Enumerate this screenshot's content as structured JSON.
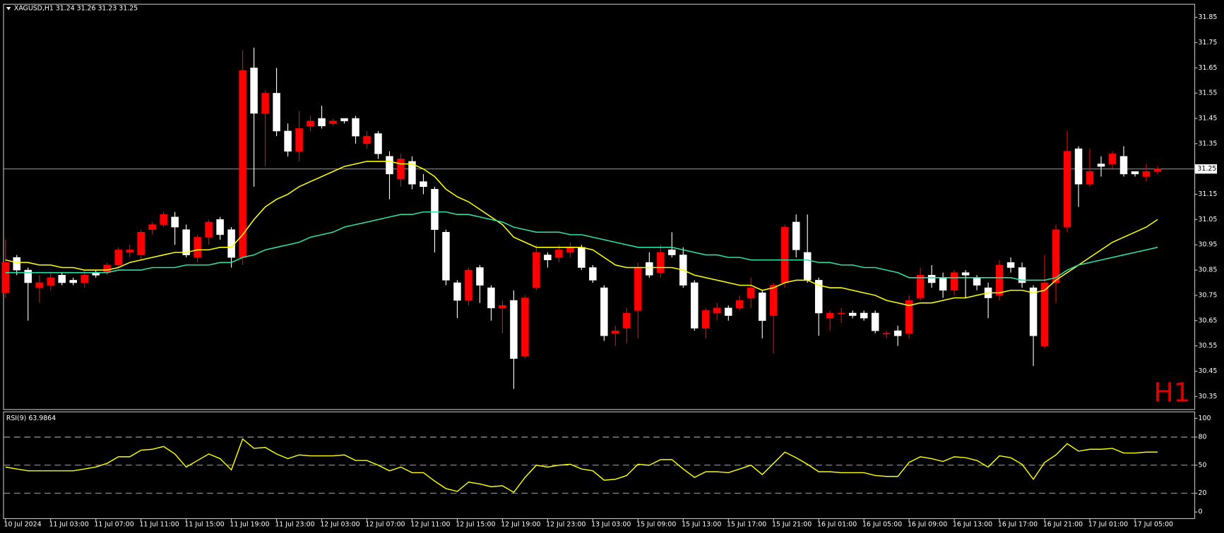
{
  "chart_data": [
    {
      "type": "candlestick",
      "title": "XAGUSD,H1  31.24 31.26 31.23 31.25",
      "watermark": "H1",
      "watermark_color": "#e00000",
      "up_color": "#ff0000",
      "down_color": "#ffffff",
      "last_price": 31.25,
      "categories": [
        "10 Jul 2024",
        null,
        null,
        null,
        "11 Jul 03:00",
        null,
        null,
        null,
        "11 Jul 07:00",
        null,
        null,
        null,
        "11 Jul 11:00",
        null,
        null,
        null,
        "11 Jul 15:00",
        null,
        null,
        null,
        "11 Jul 19:00",
        null,
        null,
        null,
        "11 Jul 23:00",
        null,
        null,
        null,
        "12 Jul 03:00",
        null,
        null,
        null,
        "12 Jul 07:00",
        null,
        null,
        null,
        "12 Jul 11:00",
        null,
        null,
        null,
        "12 Jul 15:00",
        null,
        null,
        null,
        "12 Jul 19:00",
        null,
        null,
        null,
        "12 Jul 23:00",
        null,
        null,
        null,
        "13 Jul 03:00",
        null,
        null,
        null,
        "15 Jul 09:00",
        null,
        null,
        null,
        "15 Jul 13:00",
        null,
        null,
        null,
        "15 Jul 17:00",
        null,
        null,
        null,
        "15 Jul 21:00",
        null,
        null,
        null,
        "16 Jul 01:00",
        null,
        null,
        null,
        "16 Jul 05:00",
        null,
        null,
        null,
        "16 Jul 09:00",
        null,
        null,
        null,
        "16 Jul 13:00",
        null,
        null,
        null,
        "16 Jul 17:00",
        null,
        null,
        null,
        "16 Jul 21:00",
        null,
        null,
        null,
        "17 Jul 01:00",
        null,
        null,
        null,
        "17 Jul 05:00",
        null,
        null
      ],
      "open": [
        30.76,
        30.9,
        30.85,
        30.78,
        30.79,
        30.83,
        30.81,
        30.8,
        30.84,
        30.84,
        30.87,
        30.92,
        30.91,
        31.01,
        31.03,
        31.06,
        31.01,
        30.9,
        30.98,
        31.05,
        31.01,
        30.9,
        31.65,
        31.47,
        31.55,
        31.4,
        31.32,
        31.42,
        31.45,
        31.43,
        31.45,
        31.45,
        31.35,
        31.39,
        31.3,
        31.21,
        31.28,
        31.2,
        31.17,
        31.0,
        30.8,
        30.73,
        30.86,
        30.78,
        30.7,
        30.73,
        30.51,
        30.78,
        30.91,
        30.9,
        30.92,
        30.94,
        30.86,
        30.78,
        30.6,
        30.62,
        30.69,
        30.88,
        30.84,
        30.93,
        30.91,
        30.8,
        30.62,
        30.68,
        30.7,
        30.7,
        30.74,
        30.76,
        30.67,
        30.8,
        31.04,
        30.92,
        30.81,
        30.66,
        30.68,
        30.68,
        30.68,
        30.68,
        30.6,
        30.61,
        30.6,
        30.74,
        30.83,
        30.82,
        30.77,
        30.84,
        30.82,
        30.78,
        30.75,
        30.88,
        30.86,
        30.78,
        30.55,
        30.8,
        31.02,
        31.33,
        31.19,
        31.27,
        31.27,
        31.3,
        31.24,
        31.22,
        31.24
      ],
      "high": [
        30.97,
        30.91,
        30.86,
        30.83,
        30.84,
        30.84,
        30.82,
        30.85,
        30.85,
        30.88,
        30.94,
        30.95,
        31.01,
        31.04,
        31.08,
        31.08,
        31.03,
        30.99,
        31.05,
        31.06,
        31.02,
        31.72,
        31.73,
        31.56,
        31.65,
        31.43,
        31.48,
        31.46,
        31.5,
        31.45,
        31.45,
        31.46,
        31.4,
        31.4,
        31.32,
        31.31,
        31.3,
        31.23,
        31.18,
        31.01,
        30.81,
        30.86,
        30.87,
        30.79,
        30.73,
        30.77,
        30.75,
        30.95,
        30.92,
        30.95,
        30.96,
        30.95,
        30.87,
        30.79,
        30.63,
        30.7,
        30.88,
        30.92,
        30.95,
        31.0,
        30.94,
        30.81,
        30.7,
        30.72,
        30.71,
        30.75,
        30.82,
        30.77,
        30.8,
        31.03,
        31.07,
        31.07,
        30.82,
        30.69,
        30.7,
        30.69,
        30.69,
        30.69,
        30.61,
        30.63,
        30.75,
        30.86,
        30.87,
        30.84,
        30.85,
        30.85,
        30.83,
        30.8,
        30.89,
        30.9,
        30.88,
        30.79,
        30.91,
        31.03,
        31.4,
        31.34,
        31.33,
        31.3,
        31.32,
        31.34,
        31.24,
        31.27,
        31.26
      ],
      "low": [
        30.74,
        30.83,
        30.65,
        30.72,
        30.77,
        30.79,
        30.79,
        30.78,
        30.82,
        30.83,
        30.86,
        30.9,
        30.89,
        30.99,
        31.02,
        30.95,
        30.9,
        30.88,
        30.95,
        30.97,
        30.86,
        30.87,
        31.18,
        31.26,
        31.38,
        31.3,
        31.28,
        31.4,
        31.41,
        31.42,
        31.43,
        31.35,
        31.33,
        31.29,
        31.13,
        31.18,
        31.17,
        31.15,
        30.92,
        30.79,
        30.66,
        30.71,
        30.72,
        30.65,
        30.6,
        30.38,
        30.5,
        30.77,
        30.86,
        30.88,
        30.9,
        30.85,
        30.8,
        30.57,
        30.55,
        30.56,
        30.58,
        30.82,
        30.82,
        30.9,
        30.78,
        30.61,
        30.58,
        30.65,
        30.65,
        30.69,
        30.7,
        30.58,
        30.52,
        30.78,
        30.9,
        30.8,
        30.59,
        30.61,
        30.64,
        30.66,
        30.65,
        30.6,
        30.58,
        30.55,
        30.58,
        30.73,
        30.78,
        30.74,
        30.75,
        30.74,
        30.77,
        30.66,
        30.73,
        30.84,
        30.78,
        30.47,
        30.54,
        30.72,
        31.0,
        31.1,
        31.18,
        31.22,
        31.25,
        31.22,
        31.22,
        31.2,
        31.23
      ],
      "close": [
        30.88,
        30.85,
        30.8,
        30.8,
        30.82,
        30.8,
        30.8,
        30.83,
        30.83,
        30.87,
        30.93,
        30.93,
        31.0,
        31.03,
        31.07,
        31.02,
        30.91,
        30.98,
        31.04,
        30.99,
        30.9,
        31.64,
        31.47,
        31.55,
        31.4,
        31.32,
        31.41,
        31.44,
        31.42,
        31.44,
        31.44,
        31.38,
        31.38,
        31.31,
        31.23,
        31.29,
        31.19,
        31.18,
        31.01,
        30.81,
        30.73,
        30.85,
        30.79,
        30.7,
        30.71,
        30.5,
        30.74,
        30.92,
        30.89,
        30.93,
        30.94,
        30.86,
        30.81,
        30.59,
        30.61,
        30.68,
        30.86,
        30.83,
        30.92,
        30.91,
        30.79,
        30.62,
        30.69,
        30.7,
        30.67,
        30.73,
        30.78,
        30.65,
        30.79,
        31.02,
        30.93,
        30.81,
        30.68,
        30.68,
        30.68,
        30.67,
        30.66,
        30.61,
        30.6,
        30.59,
        30.73,
        30.83,
        30.8,
        30.77,
        30.84,
        30.83,
        30.79,
        30.74,
        30.87,
        30.86,
        30.8,
        30.59,
        30.8,
        31.01,
        31.32,
        31.19,
        31.24,
        31.26,
        31.31,
        31.23,
        31.23,
        31.24,
        31.25
      ],
      "lines": [
        {
          "color": "#ffff00",
          "values": [
            30.89,
            30.88,
            30.88,
            30.87,
            30.87,
            30.86,
            30.86,
            30.85,
            30.85,
            30.85,
            30.86,
            30.88,
            30.89,
            30.9,
            30.91,
            30.92,
            30.92,
            30.93,
            30.93,
            30.94,
            30.94,
            30.99,
            31.05,
            31.1,
            31.13,
            31.15,
            31.18,
            31.2,
            31.22,
            31.24,
            31.26,
            31.27,
            31.28,
            31.28,
            31.28,
            31.27,
            31.27,
            31.25,
            31.22,
            31.17,
            31.14,
            31.12,
            31.09,
            31.06,
            31.03,
            30.98,
            30.96,
            30.94,
            30.94,
            30.94,
            30.94,
            30.94,
            30.93,
            30.9,
            30.87,
            30.86,
            30.86,
            30.86,
            30.86,
            30.86,
            30.85,
            30.83,
            30.82,
            30.81,
            30.8,
            30.79,
            30.79,
            30.77,
            30.78,
            30.8,
            30.81,
            30.81,
            30.79,
            30.78,
            30.78,
            30.77,
            30.76,
            30.75,
            30.73,
            30.72,
            30.71,
            30.72,
            30.72,
            30.73,
            30.74,
            30.74,
            30.75,
            30.76,
            30.76,
            30.77,
            30.77,
            30.76,
            30.77,
            30.81,
            30.84,
            30.87,
            30.9,
            30.93,
            30.96,
            30.98,
            31.0,
            31.02,
            31.05
          ]
        },
        {
          "color": "#2ee0a8",
          "values": [
            30.84,
            30.84,
            30.84,
            30.84,
            30.84,
            30.84,
            30.84,
            30.84,
            30.84,
            30.84,
            30.85,
            30.85,
            30.85,
            30.86,
            30.86,
            30.86,
            30.87,
            30.87,
            30.87,
            30.88,
            30.88,
            30.9,
            30.91,
            30.93,
            30.94,
            30.95,
            30.96,
            30.98,
            30.99,
            31.0,
            31.02,
            31.03,
            31.04,
            31.05,
            31.06,
            31.07,
            31.07,
            31.08,
            31.08,
            31.08,
            31.07,
            31.07,
            31.06,
            31.05,
            31.04,
            31.02,
            31.01,
            31.0,
            31.0,
            31.0,
            30.99,
            30.99,
            30.98,
            30.97,
            30.96,
            30.95,
            30.94,
            30.94,
            30.94,
            30.94,
            30.93,
            30.92,
            30.91,
            30.91,
            30.9,
            30.9,
            30.89,
            30.89,
            30.89,
            30.89,
            30.89,
            30.89,
            30.88,
            30.88,
            30.87,
            30.87,
            30.86,
            30.86,
            30.85,
            30.84,
            30.82,
            30.82,
            30.82,
            30.82,
            30.82,
            30.82,
            30.82,
            30.82,
            30.82,
            30.82,
            30.81,
            30.81,
            30.81,
            30.82,
            30.85,
            30.87,
            30.88,
            30.89,
            30.9,
            30.91,
            30.92,
            30.93,
            30.94
          ]
        }
      ],
      "ylim": [
        30.3,
        31.9
      ],
      "yticks": [
        30.35,
        30.45,
        30.55,
        30.65,
        30.75,
        30.85,
        30.95,
        31.05,
        31.15,
        31.25,
        31.35,
        31.45,
        31.55,
        31.65,
        31.75,
        31.85
      ]
    },
    {
      "type": "line",
      "title": "RSI(9) 63.9864",
      "color": "#ffff00",
      "values": [
        48,
        46,
        44,
        44,
        44,
        44,
        44,
        46,
        48,
        52,
        59,
        59,
        66,
        67,
        70,
        62,
        48,
        55,
        62,
        57,
        45,
        78,
        68,
        69,
        62,
        57,
        61,
        60,
        60,
        60,
        61,
        55,
        55,
        50,
        44,
        48,
        42,
        42,
        33,
        25,
        22,
        32,
        30,
        27,
        28,
        21,
        37,
        50,
        48,
        50,
        51,
        46,
        44,
        34,
        35,
        39,
        51,
        50,
        56,
        56,
        46,
        37,
        43,
        43,
        42,
        46,
        50,
        40,
        52,
        64,
        58,
        51,
        43,
        43,
        42,
        42,
        42,
        39,
        38,
        38,
        53,
        59,
        57,
        54,
        59,
        58,
        55,
        48,
        60,
        58,
        51,
        35,
        53,
        61,
        73,
        65,
        67,
        67,
        68,
        63,
        63,
        64,
        63.9864
      ],
      "levels": [
        20,
        50,
        80
      ],
      "ylim": [
        -6.6,
        106.6
      ],
      "yticks": [
        0,
        20,
        50,
        80,
        100
      ]
    }
  ]
}
